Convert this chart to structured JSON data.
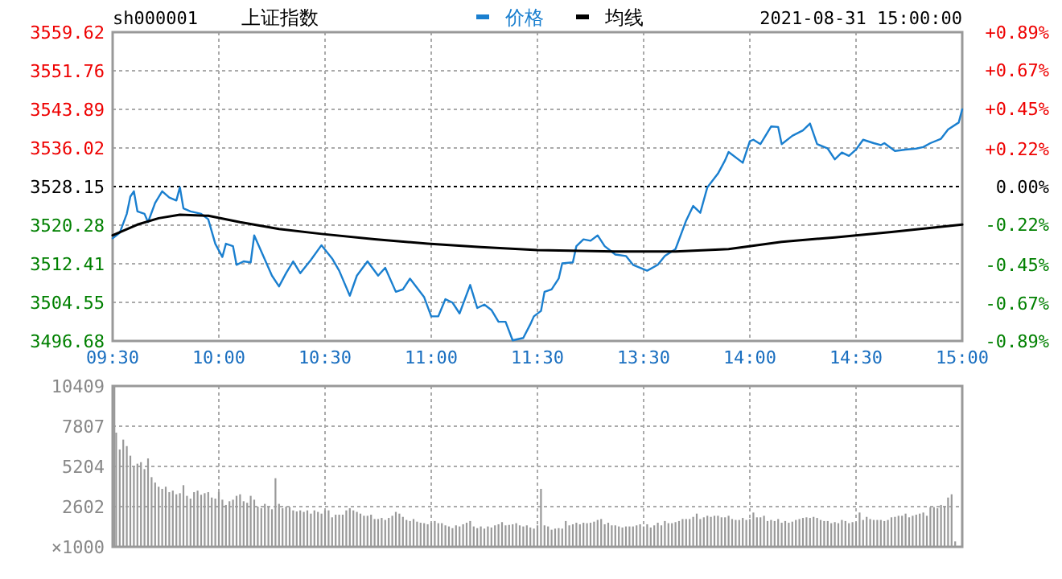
{
  "chart_data": [
    {
      "type": "line",
      "title": "上证指数",
      "subtitle": "sh000001",
      "annotations": [
        "2021-08-31 15:00:00"
      ],
      "legend": "top",
      "grid": true,
      "categories": [
        "09:30",
        null,
        null,
        null,
        null,
        null,
        null,
        null,
        null,
        null,
        null,
        null,
        null,
        null,
        null,
        null,
        null,
        null,
        null,
        null,
        null,
        null,
        null,
        null,
        null,
        null,
        null,
        null,
        null,
        null,
        "10:00",
        null,
        null,
        null,
        null,
        null,
        null,
        null,
        null,
        null,
        null,
        null,
        null,
        null,
        null,
        null,
        null,
        null,
        null,
        null,
        null,
        null,
        null,
        null,
        null,
        null,
        null,
        null,
        null,
        null,
        "10:30",
        null,
        null,
        null,
        null,
        null,
        null,
        null,
        null,
        null,
        null,
        null,
        null,
        null,
        null,
        null,
        null,
        null,
        null,
        null,
        null,
        null,
        null,
        null,
        null,
        null,
        null,
        null,
        null,
        null,
        "11:00",
        null,
        null,
        null,
        null,
        null,
        null,
        null,
        null,
        null,
        null,
        null,
        null,
        null,
        null,
        null,
        null,
        null,
        null,
        null,
        null,
        null,
        null,
        null,
        null,
        null,
        null,
        null,
        null,
        null,
        "11:30",
        null,
        null,
        null,
        null,
        null,
        null,
        null,
        null,
        null,
        null,
        null,
        null,
        null,
        null,
        null,
        null,
        null,
        null,
        null,
        null,
        null,
        null,
        null,
        null,
        null,
        null,
        null,
        null,
        null,
        "13:30",
        null,
        null,
        null,
        null,
        null,
        null,
        null,
        null,
        null,
        null,
        null,
        null,
        null,
        null,
        null,
        null,
        null,
        null,
        null,
        null,
        null,
        null,
        null,
        null,
        null,
        null,
        null,
        null,
        null,
        "14:00",
        null,
        null,
        null,
        null,
        null,
        null,
        null,
        null,
        null,
        null,
        null,
        null,
        null,
        null,
        null,
        null,
        null,
        null,
        null,
        null,
        null,
        null,
        null,
        null,
        null,
        null,
        null,
        null,
        null,
        "14:30",
        null,
        null,
        null,
        null,
        null,
        null,
        null,
        null,
        null,
        null,
        null,
        null,
        null,
        null,
        null,
        null,
        null,
        null,
        null,
        null,
        null,
        null,
        null,
        null,
        null,
        null,
        null,
        null,
        null,
        "15:00"
      ],
      "ylim": [
        3496.68,
        3559.62
      ],
      "yticks": [
        3496.68,
        3504.55,
        3512.41,
        3520.28,
        3528.15,
        3536.02,
        3543.89,
        3551.76,
        3559.62
      ],
      "y2lim": [
        -0.89,
        0.89
      ],
      "y2ticks": [
        {
          "value": -0.89,
          "label": "-0.89%"
        },
        {
          "value": -0.67,
          "label": "-0.67%"
        },
        {
          "value": -0.45,
          "label": "-0.45%"
        },
        {
          "value": -0.22,
          "label": "-0.22%"
        },
        {
          "value": 0,
          "label": "0.00%"
        },
        {
          "value": 0.22,
          "label": "+0.22%"
        },
        {
          "value": 0.45,
          "label": "+0.45%"
        },
        {
          "value": 0.67,
          "label": "+0.67%"
        },
        {
          "value": 0.89,
          "label": "+0.89%"
        }
      ],
      "ref_lines": [
        {
          "axis": "y",
          "value": 3528.15,
          "line_style": "dotted",
          "color": "#000000"
        }
      ],
      "series": [
        {
          "name": "价格",
          "color": "#1a7fcf",
          "values": [
            3517.6,
            null,
            3518.7,
            null,
            3522.6,
            3526.1,
            3527.2,
            3523.1,
            null,
            3522.6,
            3520.9,
            null,
            3524.8,
            null,
            3527.2,
            null,
            3525.9,
            null,
            3525.3,
            3528.0,
            3523.7,
            null,
            3523.1,
            null,
            null,
            3522.6,
            null,
            3521.5,
            null,
            3516.5,
            null,
            3513.8,
            3516.5,
            null,
            3516.0,
            3512.2,
            null,
            3512.9,
            null,
            3512.7,
            3518.2,
            null,
            3514.9,
            null,
            null,
            3510.0,
            null,
            3507.8,
            null,
            3510.5,
            null,
            3512.9,
            null,
            3510.5,
            null,
            null,
            3513.2,
            null,
            null,
            3516.2,
            null,
            null,
            3513.5,
            null,
            3511.0,
            null,
            null,
            3505.9,
            null,
            3510.0,
            null,
            null,
            3512.9,
            null,
            null,
            3510.0,
            null,
            3511.6,
            null,
            null,
            3506.7,
            null,
            3507.2,
            null,
            3509.4,
            null,
            null,
            null,
            3505.6,
            null,
            3501.7,
            null,
            3501.7,
            null,
            3505.2,
            null,
            3504.5,
            null,
            3502.3,
            null,
            null,
            3508.1,
            null,
            3503.4,
            null,
            3504.1,
            null,
            3503.0,
            null,
            3500.6,
            null,
            3500.6,
            null,
            3496.8,
            null,
            null,
            3497.3,
            null,
            3500.1,
            3501.7,
            null,
            3502.8,
            3506.7,
            null,
            3507.2,
            null,
            3509.4,
            3512.5,
            null,
            null,
            3512.7,
            3516.0,
            null,
            3517.4,
            null,
            3517.1,
            null,
            3518.2,
            null,
            3516.0,
            null,
            null,
            3514.3,
            null,
            null,
            3514.0,
            null,
            3512.2,
            null,
            null,
            null,
            3511.0,
            null,
            null,
            3512.2,
            null,
            3514.0,
            null,
            null,
            3515.4,
            null,
            null,
            3521.2,
            null,
            3524.2,
            null,
            3522.8,
            null,
            3528.0,
            null,
            null,
            3530.8,
            null,
            3533.5,
            3535.2,
            null,
            null,
            null,
            3533.0,
            null,
            3537.4,
            3537.7,
            null,
            3536.8,
            null,
            null,
            3540.4,
            null,
            3540.3,
            3536.8,
            null,
            null,
            3538.5,
            null,
            null,
            3539.6,
            null,
            3541.0,
            null,
            3536.8,
            null,
            null,
            3535.9,
            null,
            3533.7,
            null,
            3535.1,
            null,
            3534.4,
            null,
            3535.7,
            null,
            3537.7,
            null,
            null,
            3537.0,
            null,
            3536.6,
            3537.0,
            null,
            null,
            3535.4,
            null,
            null,
            3535.7,
            null,
            null,
            3535.9,
            null,
            3536.2,
            null,
            3537.0,
            null,
            null,
            3537.9,
            null,
            3539.8,
            null,
            null,
            3541.2,
            3543.9
          ]
        },
        {
          "name": "均线",
          "color": "#000000",
          "values": [
            3518.2,
            null,
            null,
            null,
            null,
            null,
            null,
            3520.4,
            null,
            null,
            null,
            null,
            null,
            3521.7,
            null,
            null,
            null,
            null,
            null,
            3522.4,
            null,
            null,
            null,
            null,
            null,
            null,
            null,
            3522.2,
            null,
            null,
            null,
            null,
            null,
            null,
            null,
            null,
            3520.9,
            null,
            null,
            null,
            null,
            null,
            null,
            null,
            null,
            null,
            null,
            3519.5,
            null,
            null,
            null,
            null,
            null,
            null,
            null,
            null,
            null,
            null,
            null,
            3518.5,
            null,
            null,
            null,
            null,
            null,
            null,
            null,
            null,
            null,
            null,
            null,
            null,
            null,
            null,
            3517.4,
            null,
            null,
            null,
            null,
            null,
            null,
            null,
            null,
            null,
            null,
            null,
            null,
            null,
            null,
            3516.5,
            null,
            null,
            null,
            null,
            null,
            null,
            null,
            null,
            null,
            null,
            null,
            null,
            null,
            null,
            3515.8,
            null,
            null,
            null,
            null,
            null,
            null,
            null,
            null,
            null,
            null,
            null,
            null,
            null,
            3515.3,
            null,
            3515.2,
            null,
            null,
            null,
            null,
            null,
            null,
            null,
            null,
            null,
            null,
            null,
            null,
            null,
            null,
            null,
            null,
            null,
            null,
            null,
            null,
            null,
            null,
            null,
            3514.9,
            null,
            null,
            null,
            null,
            null,
            null,
            null,
            null,
            null,
            null,
            null,
            null,
            null,
            null,
            3514.9,
            null,
            null,
            null,
            null,
            null,
            null,
            null,
            null,
            null,
            null,
            null,
            null,
            null,
            null,
            3515.4,
            null,
            null,
            null,
            null,
            null,
            null,
            null,
            null,
            null,
            null,
            null,
            null,
            null,
            null,
            3516.9,
            null,
            null,
            null,
            null,
            null,
            null,
            null,
            null,
            null,
            null,
            null,
            null,
            null,
            null,
            3517.8,
            null,
            null,
            null,
            null,
            null,
            null,
            null,
            null,
            null,
            null,
            null,
            null,
            null,
            null,
            null,
            3518.9,
            null,
            null,
            null,
            null,
            null,
            null,
            null,
            null,
            null,
            null,
            null,
            null,
            null,
            null,
            null,
            null,
            null,
            null,
            null,
            3520.4
          ]
        }
      ]
    },
    {
      "type": "bar",
      "color": "#999999",
      "grid": true,
      "tick_labels": "y",
      "ylabel": "×1000",
      "categories": [
        null,
        null,
        null,
        null,
        null,
        null,
        null,
        null,
        null,
        null,
        null,
        null,
        null,
        null,
        null,
        null,
        null,
        null,
        null,
        null,
        null,
        null,
        null,
        null,
        null,
        null,
        null,
        null,
        null,
        null,
        null,
        null,
        null,
        null,
        null,
        null,
        null,
        null,
        null,
        null,
        null,
        null,
        null,
        null,
        null,
        null,
        null,
        null,
        null,
        null,
        null,
        null,
        null,
        null,
        null,
        null,
        null,
        null,
        null,
        null,
        null,
        null,
        null,
        null,
        null,
        null,
        null,
        null,
        null,
        null,
        null,
        null,
        null,
        null,
        null,
        null,
        null,
        null,
        null,
        null,
        null,
        null,
        null,
        null,
        null,
        null,
        null,
        null,
        null,
        null,
        null,
        null,
        null,
        null,
        null,
        null,
        null,
        null,
        null,
        null,
        null,
        null,
        null,
        null,
        null,
        null,
        null,
        null,
        null,
        null,
        null,
        null,
        null,
        null,
        null,
        null,
        null,
        null,
        null,
        null,
        null,
        null,
        null,
        null,
        null,
        null,
        null,
        null,
        null,
        null,
        null,
        null,
        null,
        null,
        null,
        null,
        null,
        null,
        null,
        null,
        null,
        null,
        null,
        null,
        null,
        null,
        null,
        null,
        null,
        null,
        null,
        null,
        null,
        null,
        null,
        null,
        null,
        null,
        null,
        null,
        null,
        null,
        null,
        null,
        null,
        null,
        null,
        null,
        null,
        null,
        null,
        null,
        null,
        null,
        null,
        null,
        null,
        null,
        null,
        null,
        null,
        null,
        null,
        null,
        null,
        null,
        null,
        null,
        null,
        null,
        null,
        null,
        null,
        null,
        null,
        null,
        null,
        null,
        null,
        null,
        null,
        null,
        null,
        null,
        null,
        null,
        null,
        null,
        null,
        null,
        null,
        null,
        null,
        null,
        null,
        null,
        null,
        null,
        null,
        null,
        null,
        null,
        null,
        null,
        null,
        null,
        null,
        null,
        null,
        null,
        null,
        null,
        null,
        null,
        null,
        null,
        null,
        null,
        null,
        null,
        null
      ],
      "ylim": [
        0,
        10409
      ],
      "yticks": [
        2602,
        5204,
        7807,
        10409
      ],
      "values": [
        10409,
        7390,
        6300,
        6940,
        6520,
        5900,
        5200,
        5380,
        5480,
        5030,
        5720,
        4510,
        4160,
        3890,
        3750,
        3890,
        3540,
        3640,
        3400,
        3470,
        3990,
        3300,
        3120,
        3540,
        3640,
        3370,
        3470,
        3540,
        3190,
        3120,
        3540,
        3050,
        2710,
        2950,
        3050,
        3300,
        3400,
        2950,
        2850,
        3300,
        3050,
        2600,
        2500,
        2780,
        2600,
        2430,
        4440,
        2780,
        2500,
        2600,
        2570,
        2360,
        2290,
        2360,
        2260,
        2360,
        2150,
        2360,
        2260,
        2150,
        2360,
        2360,
        1910,
        2080,
        2080,
        2080,
        2360,
        2500,
        2360,
        2260,
        2150,
        2010,
        2010,
        2080,
        1800,
        1800,
        1870,
        1740,
        1870,
        2010,
        2260,
        2150,
        1940,
        1740,
        1670,
        1800,
        1630,
        1560,
        1530,
        1460,
        1560,
        1670,
        1530,
        1530,
        1390,
        1320,
        1210,
        1390,
        1320,
        1460,
        1560,
        1670,
        1320,
        1210,
        1320,
        1180,
        1320,
        1250,
        1390,
        1460,
        1600,
        1390,
        1420,
        1460,
        1530,
        1390,
        1320,
        1390,
        1250,
        1180,
        1390,
        3750,
        1390,
        1320,
        1110,
        1180,
        1210,
        1180,
        1670,
        1390,
        1460,
        1560,
        1460,
        1560,
        1530,
        1560,
        1630,
        1740,
        1800,
        1460,
        1560,
        1390,
        1390,
        1320,
        1250,
        1320,
        1320,
        1320,
        1390,
        1460,
        1320,
        1460,
        1250,
        1390,
        1560,
        1390,
        1670,
        1530,
        1530,
        1600,
        1670,
        1800,
        1800,
        1800,
        1940,
        2150,
        1800,
        1910,
        2010,
        1940,
        2010,
        2010,
        1910,
        1910,
        2010,
        1800,
        1740,
        1740,
        1870,
        1740,
        1800,
        2220,
        1910,
        1910,
        2010,
        1670,
        1740,
        1670,
        1800,
        1560,
        1670,
        1560,
        1630,
        1740,
        1800,
        1870,
        1910,
        1870,
        1940,
        1870,
        1740,
        1670,
        1670,
        1530,
        1600,
        1530,
        1740,
        1670,
        1530,
        1600,
        1600,
        2220,
        1740,
        1940,
        1800,
        1740,
        1740,
        1740,
        1670,
        1740,
        1910,
        1940,
        2010,
        2010,
        2150,
        1910,
        2010,
        2080,
        2150,
        2220,
        2010,
        2570,
        2570,
        2500,
        2710,
        2640,
        3190,
        3400,
        350,
        null,
        null
      ]
    }
  ]
}
